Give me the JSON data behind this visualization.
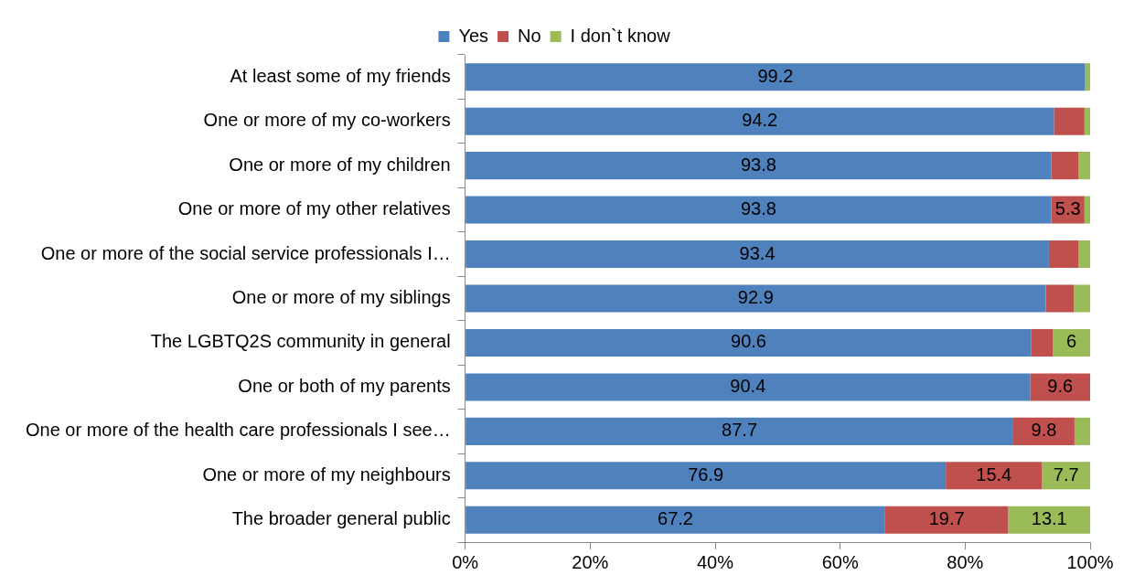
{
  "chart_data": {
    "type": "bar",
    "orientation": "horizontal",
    "stacked": true,
    "legend": "top",
    "grid": false,
    "categories": [
      "At least some of my friends",
      "One or more of my co-workers",
      "One or more of my children",
      "One or more of my other relatives",
      "One or more of the social service professionals I…",
      "One or more of my siblings",
      "The LGBTQ2S community in general",
      "One or both of my parents",
      "One or more of the health care professionals I see…",
      "One or more of my neighbours",
      "The broader general public"
    ],
    "xlim": [
      0,
      100
    ],
    "xticks": [
      {
        "value": 0,
        "label": "0%"
      },
      {
        "value": 20,
        "label": "20%"
      },
      {
        "value": 40,
        "label": "40%"
      },
      {
        "value": 60,
        "label": "60%"
      },
      {
        "value": 80,
        "label": "80%"
      },
      {
        "value": 100,
        "label": "100%"
      }
    ],
    "series": [
      {
        "name": "Yes",
        "color": "#4f81bd",
        "values": [
          99.2,
          94.2,
          93.8,
          93.8,
          93.4,
          92.9,
          90.6,
          90.4,
          87.7,
          76.9,
          67.2
        ],
        "value_labels": [
          "99.2",
          "94.2",
          "93.8",
          "93.8",
          "93.4",
          "92.9",
          "90.6",
          "90.4",
          "87.7",
          "76.9",
          "67.2"
        ]
      },
      {
        "name": "No",
        "color": "#c0504d",
        "values": [
          0,
          4.9,
          4.3,
          5.3,
          4.7,
          4.5,
          3.4,
          9.6,
          9.8,
          15.4,
          19.7
        ],
        "value_labels": [
          null,
          null,
          null,
          "5.3",
          null,
          null,
          null,
          "9.6",
          "9.8",
          "15.4",
          "19.7"
        ]
      },
      {
        "name": "I don`t know",
        "color": "#9bbb59",
        "values": [
          0.8,
          0.9,
          1.9,
          0.9,
          1.9,
          2.6,
          6,
          0,
          2.5,
          7.7,
          13.1
        ],
        "value_labels": [
          null,
          null,
          null,
          null,
          null,
          null,
          "6",
          null,
          null,
          "7.7",
          "13.1"
        ]
      }
    ]
  }
}
